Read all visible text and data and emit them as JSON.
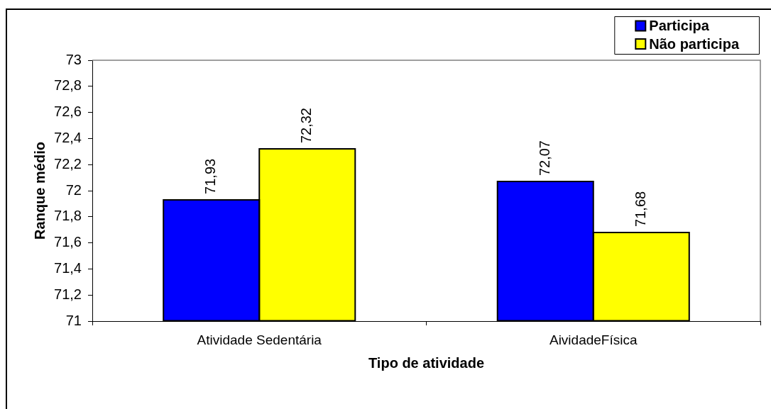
{
  "chart_data": {
    "type": "bar",
    "xlabel": "Tipo de atividade",
    "ylabel": "Ranque médio",
    "categories": [
      "Atividade Sedentária",
      "AividadeFísica"
    ],
    "series": [
      {
        "name": "Participa",
        "color": "#0000ff",
        "values": [
          71.93,
          72.07
        ],
        "value_labels": [
          "71,93",
          "72,07"
        ]
      },
      {
        "name": "Não participa",
        "color": "#ffff00",
        "values": [
          72.32,
          71.68
        ],
        "value_labels": [
          "72,32",
          "71,68"
        ]
      }
    ],
    "ylim": [
      71,
      73
    ],
    "yticks": [
      71,
      {
        "value": 71.2,
        "label": "71,2"
      },
      {
        "value": 71.4,
        "label": "71,4"
      },
      {
        "value": 71.6,
        "label": "71,6"
      },
      {
        "value": 71.8,
        "label": "71,8"
      },
      72,
      {
        "value": 72.2,
        "label": "72,2"
      },
      {
        "value": 72.4,
        "label": "72,4"
      },
      {
        "value": 72.6,
        "label": "72,6"
      },
      {
        "value": 72.8,
        "label": "72,8"
      },
      73
    ],
    "grid": false,
    "legend": "top right"
  }
}
